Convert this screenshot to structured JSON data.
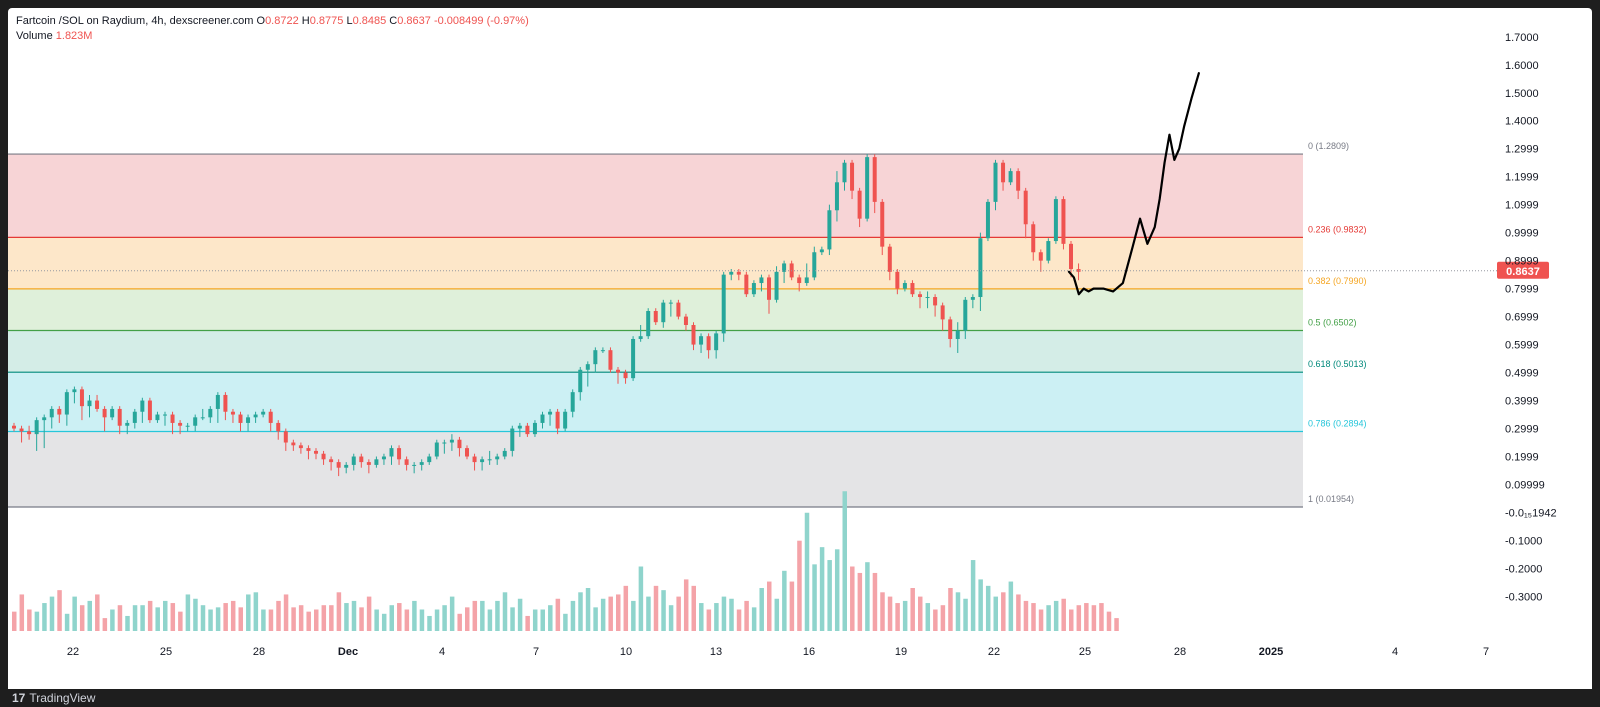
{
  "header": {
    "symbol": "Fartcoin /SOL on Raydium, 4h, dexscreener.com",
    "open_label": "O",
    "open": "0.8722",
    "high_label": "H",
    "high": "0.8775",
    "low_label": "L",
    "low": "0.8485",
    "close_label": "C",
    "close": "0.8637",
    "change": "-0.008499 (-0.97%)",
    "volume_label": "Volume",
    "volume": "1.823M"
  },
  "footer": {
    "brand": "TradingView"
  },
  "colors": {
    "up": "#26a69a",
    "down": "#ef5350",
    "up_vol": "#8fd4cc",
    "down_vol": "#f4a3a8",
    "price_tag": "#ef5350",
    "text": "#131722",
    "axis_text": "#131722"
  },
  "chart_data": {
    "type": "candlestick",
    "price_axis": {
      "ticks": [
        "1.7000",
        "1.6000",
        "1.5000",
        "1.4000",
        "1.2999",
        "1.1999",
        "1.0999",
        "0.9999",
        "0.8999",
        "0.7999",
        "0.6999",
        "0.5999",
        "0.4999",
        "0.3999",
        "0.2999",
        "0.1999",
        "0.09999",
        "-0.0₁₅1942",
        "-0.1000",
        "-0.2000",
        "-0.3000"
      ],
      "range": [
        -0.37,
        1.76
      ]
    },
    "time_axis": {
      "ticks": [
        "22",
        "25",
        "28",
        "Dec",
        "4",
        "7",
        "10",
        "13",
        "16",
        "19",
        "22",
        "25",
        "28",
        "2025",
        "4",
        "7"
      ]
    },
    "last_price": 0.8637,
    "last_price_label": "0.8637",
    "fibonacci": [
      {
        "label": "0 (1.2809)",
        "level": 1.2809,
        "color": "#787b86",
        "fill": "#f7d4d6"
      },
      {
        "label": "0.236 (0.9832)",
        "level": 0.9832,
        "color": "#e53935",
        "fill": "#fde7c9"
      },
      {
        "label": "0.382 (0.7990)",
        "level": 0.799,
        "color": "#f5a623",
        "fill": "#dff0da"
      },
      {
        "label": "0.5 (0.6502)",
        "level": 0.6502,
        "color": "#43a047",
        "fill": "#d4ede7"
      },
      {
        "label": "0.618 (0.5013)",
        "level": 0.5013,
        "color": "#00897b",
        "fill": "#ccf0f4"
      },
      {
        "label": "0.786 (0.2894)",
        "level": 0.2894,
        "color": "#26c6da",
        "fill": "#e4e4e6"
      },
      {
        "label": "1 (0.01954)",
        "level": 0.01954,
        "color": "#787b86",
        "fill": null
      }
    ],
    "candles": [
      [
        0.31,
        0.3,
        0.31,
        0.3
      ],
      [
        0.3,
        0.29,
        0.26,
        0.3
      ],
      [
        0.29,
        0.28,
        0.27,
        0.3
      ],
      [
        0.28,
        0.33,
        0.23,
        0.26
      ],
      [
        0.33,
        0.34,
        0.24,
        0.34
      ],
      [
        0.34,
        0.37,
        0.31,
        0.34
      ],
      [
        0.37,
        0.35,
        0.33,
        0.34
      ],
      [
        0.35,
        0.43,
        0.32,
        0.4
      ],
      [
        0.43,
        0.44,
        0.4,
        0.4
      ],
      [
        0.44,
        0.38,
        0.38,
        0.34
      ],
      [
        0.38,
        0.4,
        0.35,
        0.41
      ],
      [
        0.4,
        0.37,
        0.39,
        0.41
      ],
      [
        0.37,
        0.34,
        0.3,
        0.34
      ],
      [
        0.34,
        0.37,
        0.34,
        0.34
      ],
      [
        0.37,
        0.31,
        0.29,
        0.33
      ],
      [
        0.31,
        0.32,
        0.29,
        0.29
      ],
      [
        0.32,
        0.36,
        0.31,
        0.32
      ],
      [
        0.36,
        0.4,
        0.33,
        0.37
      ],
      [
        0.4,
        0.33,
        0.33,
        0.35
      ],
      [
        0.33,
        0.35,
        0.33,
        0.35
      ],
      [
        0.35,
        0.35,
        0.34,
        0.32
      ],
      [
        0.35,
        0.32,
        0.29,
        0.32
      ],
      [
        0.32,
        0.31,
        0.32,
        0.29
      ],
      [
        0.31,
        0.31,
        0.3,
        0.3
      ],
      [
        0.31,
        0.34,
        0.3,
        0.32
      ],
      [
        0.34,
        0.34,
        0.36,
        0.34
      ],
      [
        0.34,
        0.37,
        0.33,
        0.37
      ],
      [
        0.37,
        0.42,
        0.33,
        0.35
      ],
      [
        0.42,
        0.36,
        0.34,
        0.36
      ],
      [
        0.36,
        0.35,
        0.34,
        0.33
      ],
      [
        0.35,
        0.32,
        0.3,
        0.33
      ],
      [
        0.32,
        0.34,
        0.3,
        0.33
      ],
      [
        0.34,
        0.35,
        0.33,
        0.34
      ],
      [
        0.35,
        0.36,
        0.35,
        0.36
      ],
      [
        0.36,
        0.32,
        0.3,
        0.34
      ],
      [
        0.32,
        0.29,
        0.3,
        0.27
      ],
      [
        0.29,
        0.25,
        0.23,
        0.27
      ],
      [
        0.25,
        0.24,
        0.24,
        0.23
      ],
      [
        0.24,
        0.23,
        0.23,
        0.22
      ],
      [
        0.23,
        0.22,
        0.2,
        0.21
      ],
      [
        0.22,
        0.21,
        0.2,
        0.2
      ],
      [
        0.21,
        0.19,
        0.18,
        0.18
      ],
      [
        0.19,
        0.18,
        0.16,
        0.19
      ],
      [
        0.18,
        0.16,
        0.14,
        0.16
      ],
      [
        0.16,
        0.17,
        0.16,
        0.15
      ],
      [
        0.17,
        0.2,
        0.18,
        0.16
      ],
      [
        0.2,
        0.18,
        0.17,
        0.17
      ],
      [
        0.18,
        0.17,
        0.18,
        0.15
      ],
      [
        0.17,
        0.19,
        0.17,
        0.18
      ],
      [
        0.19,
        0.2,
        0.19,
        0.18
      ],
      [
        0.2,
        0.23,
        0.18,
        0.21
      ],
      [
        0.23,
        0.19,
        0.18,
        0.21
      ],
      [
        0.19,
        0.17,
        0.17,
        0.16
      ],
      [
        0.17,
        0.17,
        0.17,
        0.15
      ],
      [
        0.17,
        0.18,
        0.17,
        0.16
      ],
      [
        0.18,
        0.2,
        0.18,
        0.19
      ],
      [
        0.2,
        0.25,
        0.22,
        0.2
      ],
      [
        0.25,
        0.25,
        0.23,
        0.22
      ],
      [
        0.25,
        0.26,
        0.27,
        0.23
      ],
      [
        0.26,
        0.23,
        0.24,
        0.21
      ],
      [
        0.23,
        0.2,
        0.21,
        0.2
      ],
      [
        0.2,
        0.18,
        0.16,
        0.19
      ],
      [
        0.18,
        0.19,
        0.17,
        0.16
      ],
      [
        0.19,
        0.19,
        0.21,
        0.18
      ],
      [
        0.19,
        0.2,
        0.18,
        0.2
      ],
      [
        0.2,
        0.22,
        0.22,
        0.21
      ],
      [
        0.22,
        0.3,
        0.25,
        0.21
      ],
      [
        0.3,
        0.31,
        0.28,
        0.3
      ],
      [
        0.31,
        0.28,
        0.29,
        0.3
      ],
      [
        0.28,
        0.32,
        0.29,
        0.3
      ],
      [
        0.32,
        0.35,
        0.34,
        0.31
      ],
      [
        0.35,
        0.36,
        0.33,
        0.32
      ],
      [
        0.36,
        0.3,
        0.31,
        0.29
      ],
      [
        0.3,
        0.36,
        0.33,
        0.31
      ],
      [
        0.36,
        0.43,
        0.39,
        0.35
      ],
      [
        0.43,
        0.51,
        0.47,
        0.41
      ],
      [
        0.51,
        0.53,
        0.49,
        0.46
      ],
      [
        0.53,
        0.58,
        0.53,
        0.51
      ],
      [
        0.58,
        0.58,
        0.58,
        0.58
      ],
      [
        0.58,
        0.51,
        0.54,
        0.53
      ],
      [
        0.51,
        0.5,
        0.47,
        0.48
      ],
      [
        0.5,
        0.48,
        0.47,
        0.48
      ],
      [
        0.48,
        0.62,
        0.58,
        0.5
      ],
      [
        0.62,
        0.63,
        0.66,
        0.62
      ],
      [
        0.63,
        0.72,
        0.69,
        0.63
      ],
      [
        0.72,
        0.68,
        0.7,
        0.68
      ],
      [
        0.68,
        0.75,
        0.71,
        0.67
      ],
      [
        0.75,
        0.75,
        0.74,
        0.71
      ],
      [
        0.75,
        0.7,
        0.71,
        0.7
      ],
      [
        0.7,
        0.67,
        0.69,
        0.66
      ],
      [
        0.67,
        0.6,
        0.6,
        0.59
      ],
      [
        0.6,
        0.63,
        0.6,
        0.58
      ],
      [
        0.63,
        0.58,
        0.56,
        0.59
      ],
      [
        0.58,
        0.64,
        0.61,
        0.56
      ],
      [
        0.64,
        0.85,
        0.82,
        0.62
      ],
      [
        0.85,
        0.86,
        0.86,
        0.84
      ],
      [
        0.86,
        0.85,
        0.85,
        0.84
      ],
      [
        0.85,
        0.78,
        0.81,
        0.78
      ],
      [
        0.78,
        0.82,
        0.82,
        0.78
      ],
      [
        0.82,
        0.84,
        0.83,
        0.8
      ],
      [
        0.84,
        0.76,
        0.8,
        0.72
      ],
      [
        0.76,
        0.86,
        0.87,
        0.77
      ],
      [
        0.86,
        0.89,
        0.85,
        0.83
      ],
      [
        0.89,
        0.84,
        0.87,
        0.84
      ],
      [
        0.84,
        0.82,
        0.83,
        0.8
      ],
      [
        0.82,
        0.84,
        0.88,
        0.82
      ],
      [
        0.84,
        0.93,
        0.94,
        0.84
      ],
      [
        0.93,
        0.94,
        0.93,
        0.93
      ],
      [
        0.94,
        1.08,
        1.09,
        0.93
      ],
      [
        1.08,
        1.18,
        1.21,
        1.05
      ],
      [
        1.18,
        1.25,
        1.25,
        1.16
      ],
      [
        1.25,
        1.15,
        1.14,
        1.13
      ],
      [
        1.15,
        1.05,
        1.03,
        1.03
      ],
      [
        1.05,
        1.27,
        1.26,
        1.05
      ],
      [
        1.27,
        1.11,
        1.1,
        1.08
      ],
      [
        1.11,
        0.95,
        0.93,
        0.95
      ],
      [
        0.95,
        0.86,
        0.84,
        0.85
      ],
      [
        0.86,
        0.8,
        0.82,
        0.79
      ],
      [
        0.8,
        0.82,
        0.8,
        0.82
      ],
      [
        0.82,
        0.78,
        0.79,
        0.79
      ],
      [
        0.78,
        0.77,
        0.78,
        0.74
      ],
      [
        0.77,
        0.77,
        0.78,
        0.74
      ],
      [
        0.77,
        0.74,
        0.71,
        0.72
      ],
      [
        0.74,
        0.69,
        0.66,
        0.71
      ],
      [
        0.69,
        0.62,
        0.6,
        0.61
      ],
      [
        0.62,
        0.65,
        0.67,
        0.58
      ],
      [
        0.65,
        0.76,
        0.74,
        0.63
      ],
      [
        0.76,
        0.77,
        0.74,
        0.77
      ],
      [
        0.77,
        0.98,
        0.99,
        0.73
      ],
      [
        0.98,
        1.11,
        1.09,
        0.99
      ],
      [
        1.11,
        1.25,
        1.23,
        1.09
      ],
      [
        1.25,
        1.18,
        1.16,
        1.16
      ],
      [
        1.18,
        1.22,
        1.18,
        1.2
      ],
      [
        1.22,
        1.15,
        1.13,
        1.17
      ],
      [
        1.15,
        1.03,
        1.02,
        0.99
      ],
      [
        1.03,
        0.93,
        0.94,
        0.91
      ],
      [
        0.93,
        0.9,
        0.91,
        0.87
      ],
      [
        0.9,
        0.97,
        0.95,
        0.91
      ],
      [
        0.97,
        1.12,
        1.12,
        0.99
      ],
      [
        1.12,
        0.96,
        0.96,
        0.95
      ],
      [
        0.96,
        0.87,
        0.86,
        0.85
      ],
      [
        0.87,
        0.86,
        0.88,
        0.84
      ]
    ],
    "volume": [
      0.9,
      1.7,
      1.0,
      0.9,
      1.3,
      1.6,
      1.9,
      0.8,
      1.6,
      1.2,
      1.4,
      1.7,
      0.6,
      1.0,
      1.2,
      0.7,
      1.2,
      1.2,
      1.4,
      1.1,
      1.4,
      1.3,
      0.9,
      1.7,
      1.5,
      1.2,
      1.0,
      1.1,
      1.3,
      1.4,
      1.1,
      1.7,
      1.8,
      1.0,
      1.0,
      1.4,
      1.7,
      1.1,
      1.2,
      0.9,
      1.0,
      1.2,
      1.2,
      1.8,
      1.3,
      1.4,
      1.1,
      1.6,
      1.0,
      0.8,
      1.2,
      1.3,
      1.0,
      1.4,
      1.0,
      0.7,
      1.0,
      1.2,
      1.6,
      0.8,
      1.1,
      1.4,
      1.4,
      1.0,
      1.4,
      1.8,
      1.1,
      1.5,
      0.7,
      1.0,
      1.0,
      1.2,
      1.5,
      0.8,
      1.4,
      1.8,
      2.0,
      1.1,
      1.5,
      1.6,
      1.7,
      2.1,
      1.4,
      3.0,
      1.6,
      2.1,
      1.9,
      1.2,
      1.6,
      2.4,
      2.1,
      1.3,
      1.0,
      1.3,
      1.6,
      1.5,
      1.0,
      1.4,
      1.1,
      2.0,
      2.3,
      1.5,
      2.8,
      2.3,
      4.2,
      5.5,
      3.1,
      3.9,
      3.3,
      3.8,
      6.5,
      3.0,
      2.7,
      3.2,
      2.7,
      1.8,
      1.6,
      1.3,
      1.4,
      2.0,
      1.6,
      1.3,
      1.0,
      1.2,
      2.0,
      1.8,
      1.5,
      3.3,
      2.4,
      2.1,
      1.6,
      1.8,
      2.3,
      1.7,
      1.4,
      1.3,
      1.0,
      1.2,
      1.4,
      1.5,
      1.0,
      1.2,
      1.3,
      1.2,
      1.3,
      0.9,
      0.6
    ],
    "drawing_points": [
      [
        0,
        0.86
      ],
      [
        2,
        0.84
      ],
      [
        4,
        0.78
      ],
      [
        6,
        0.8
      ],
      [
        8,
        0.79
      ],
      [
        10,
        0.8
      ],
      [
        14,
        0.8
      ],
      [
        18,
        0.79
      ],
      [
        22,
        0.82
      ],
      [
        26,
        0.95
      ],
      [
        29,
        1.05
      ],
      [
        32,
        0.96
      ],
      [
        35,
        1.02
      ],
      [
        37,
        1.12
      ],
      [
        39,
        1.25
      ],
      [
        41,
        1.35
      ],
      [
        43,
        1.26
      ],
      [
        45,
        1.3
      ],
      [
        47,
        1.38
      ],
      [
        50,
        1.48
      ],
      [
        53,
        1.57
      ]
    ]
  }
}
